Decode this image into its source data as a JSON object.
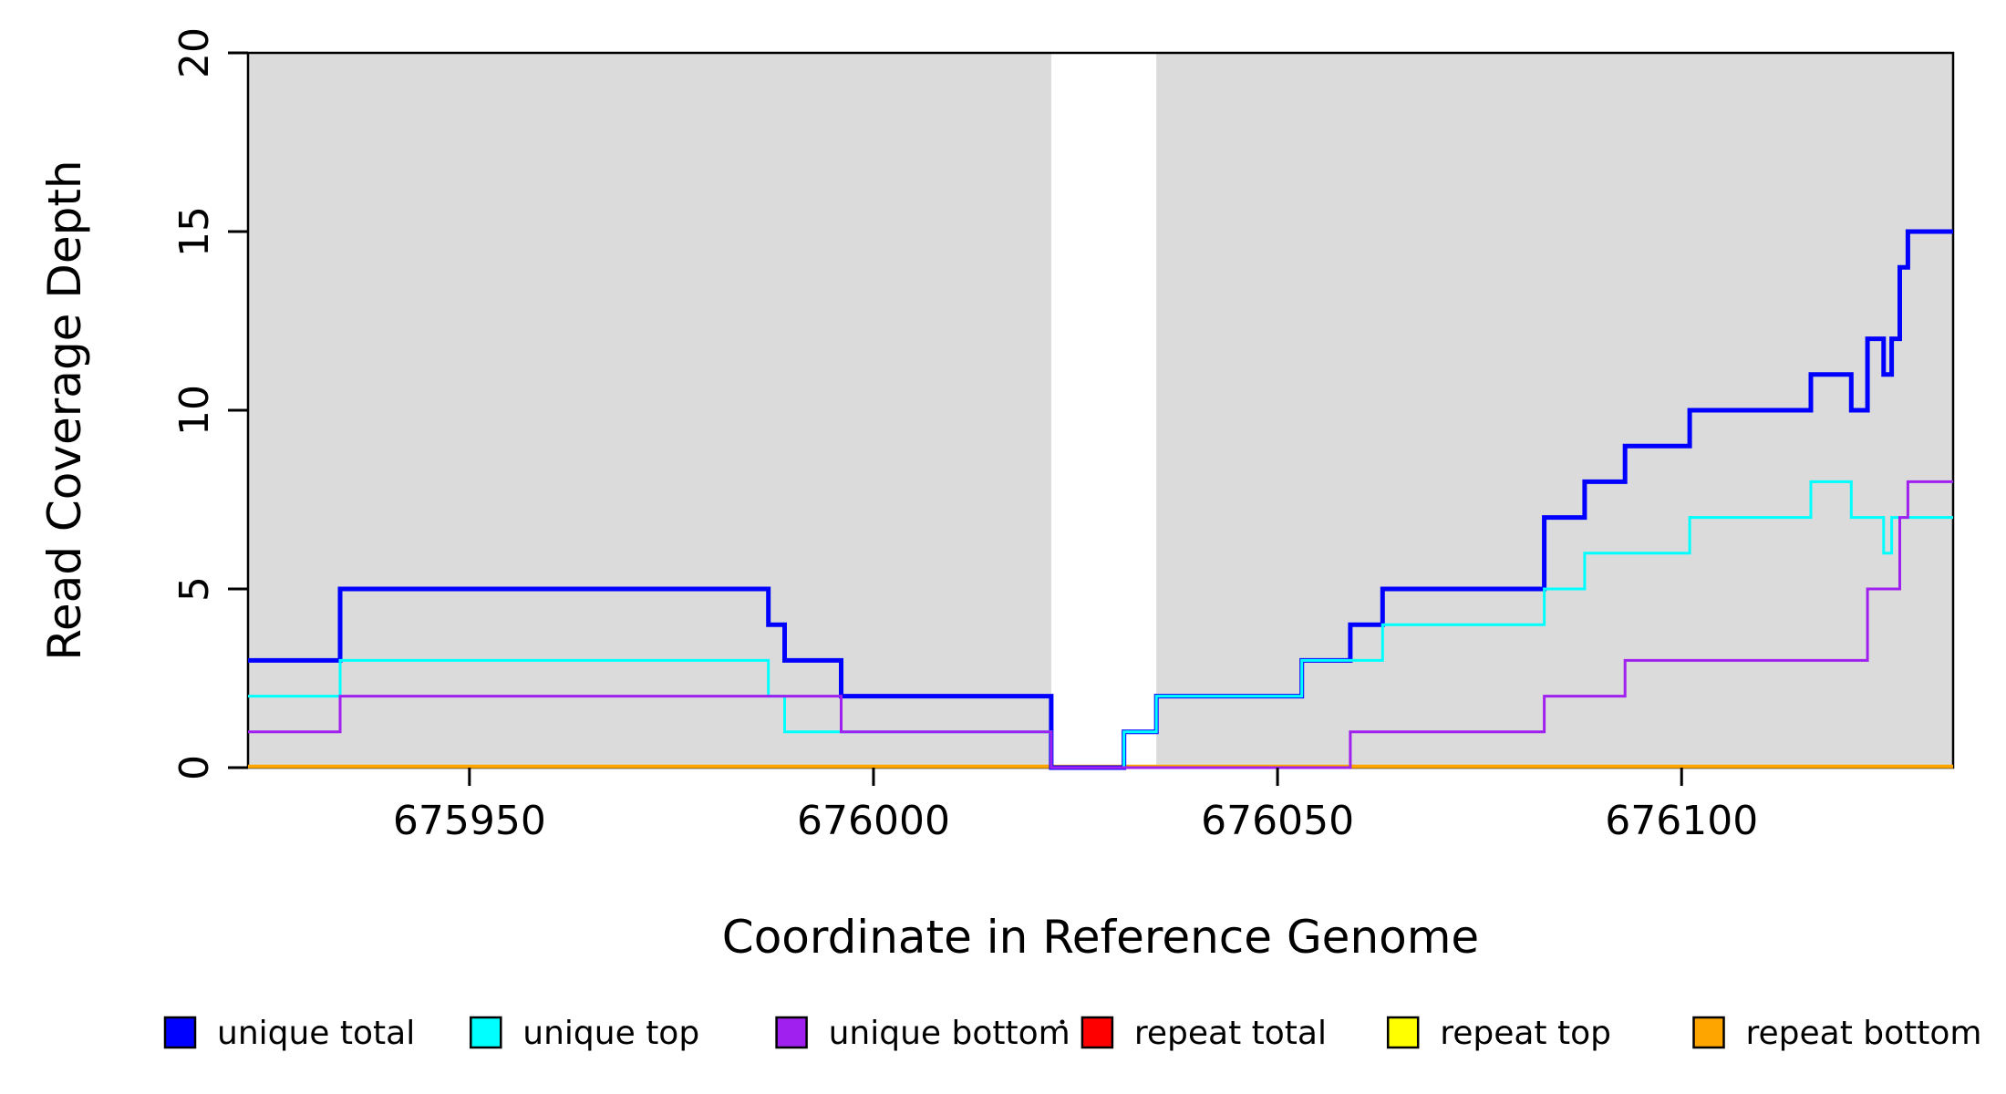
{
  "chart_data": {
    "type": "line",
    "subtype": "step",
    "title": "",
    "xlabel": "Coordinate in Reference Genome",
    "ylabel": "Read Coverage Depth",
    "xlim": [
      675922.6,
      676133.6
    ],
    "ylim": [
      0,
      20
    ],
    "x_ticks": [
      675950,
      676000,
      676050,
      676100
    ],
    "y_ticks": [
      0,
      5,
      10,
      15,
      20
    ],
    "grid": false,
    "shaded_regions": {
      "color": "#DBDBDB",
      "ranges": [
        [
          675922.6,
          676022
        ],
        [
          676035,
          676133.6
        ]
      ]
    },
    "series": [
      {
        "name": "unique total",
        "color": "#0000FF",
        "line_width": 5,
        "steps": [
          [
            675922.6,
            3
          ],
          [
            675934,
            5
          ],
          [
            675987,
            4
          ],
          [
            675989,
            3
          ],
          [
            675996,
            2
          ],
          [
            676022,
            0
          ],
          [
            676031,
            1
          ],
          [
            676035,
            2
          ],
          [
            676053,
            3
          ],
          [
            676059,
            4
          ],
          [
            676063,
            5
          ],
          [
            676083,
            7
          ],
          [
            676088,
            8
          ],
          [
            676093,
            9
          ],
          [
            676101,
            10
          ],
          [
            676116,
            11
          ],
          [
            676121,
            10
          ],
          [
            676123,
            12
          ],
          [
            676125,
            11
          ],
          [
            676126,
            12
          ],
          [
            676127,
            14
          ],
          [
            676128,
            15
          ]
        ]
      },
      {
        "name": "unique top",
        "color": "#00FFFF",
        "line_width": 3,
        "steps": [
          [
            675922.6,
            2
          ],
          [
            675934,
            3
          ],
          [
            675987,
            2
          ],
          [
            675989,
            1
          ],
          [
            676022,
            0
          ],
          [
            676031,
            1
          ],
          [
            676035,
            2
          ],
          [
            676053,
            3
          ],
          [
            676063,
            4
          ],
          [
            676083,
            5
          ],
          [
            676088,
            6
          ],
          [
            676101,
            7
          ],
          [
            676116,
            8
          ],
          [
            676121,
            7
          ],
          [
            676125,
            6
          ],
          [
            676126,
            7
          ]
        ]
      },
      {
        "name": "unique bottom",
        "color": "#A020F0",
        "line_width": 3,
        "steps": [
          [
            675922.6,
            1
          ],
          [
            675934,
            2
          ],
          [
            675996,
            1
          ],
          [
            676022,
            0
          ],
          [
            676059,
            1
          ],
          [
            676083,
            2
          ],
          [
            676093,
            3
          ],
          [
            676123,
            5
          ],
          [
            676127,
            7
          ],
          [
            676128,
            8
          ]
        ]
      },
      {
        "name": "repeat total",
        "color": "#FF0000",
        "line_width": 3,
        "steps": [
          [
            675922.6,
            0
          ]
        ]
      },
      {
        "name": "repeat top",
        "color": "#FFFF00",
        "line_width": 3,
        "steps": [
          [
            675922.6,
            0
          ]
        ]
      },
      {
        "name": "repeat bottom",
        "color": "#FFA500",
        "line_width": 4,
        "steps": [
          [
            675922.6,
            0
          ]
        ]
      }
    ],
    "draw_order": [
      "repeat total",
      "repeat top",
      "repeat bottom",
      "unique total",
      "unique top",
      "unique bottom"
    ],
    "legend": {
      "position": "bottom",
      "items": [
        {
          "label": "unique total",
          "color": "#0000FF"
        },
        {
          "label": "unique top",
          "color": "#00FFFF"
        },
        {
          "label": "unique bottom",
          "color": "#A020F0"
        },
        {
          "label": "repeat total",
          "color": "#FF0000"
        },
        {
          "label": "repeat top",
          "color": "#FFFF00"
        },
        {
          "label": "repeat bottom",
          "color": "#FFA500"
        }
      ]
    }
  }
}
